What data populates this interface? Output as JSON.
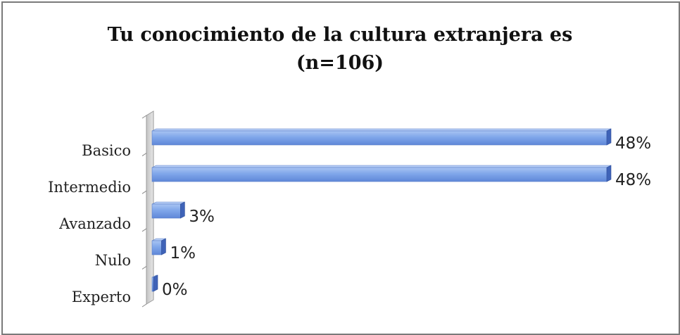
{
  "chart_data": {
    "type": "bar",
    "orientation": "horizontal",
    "title_line1": "Tu conocimiento de la cultura extranjera es",
    "title_line2": "(n=106)",
    "categories": [
      "Basico",
      "Intermedio",
      "Avanzado",
      "Nulo",
      "Experto"
    ],
    "values": [
      48,
      48,
      3,
      1,
      0
    ],
    "value_labels": [
      "48%",
      "48%",
      "3%",
      "1%",
      "0%"
    ],
    "xlim": [
      0,
      48
    ],
    "grid": false,
    "legend": "none",
    "colors": {
      "bar_fill": "#7fa6ea",
      "bar_end": "#3f63b8",
      "wall": "#d6d6d6"
    }
  }
}
